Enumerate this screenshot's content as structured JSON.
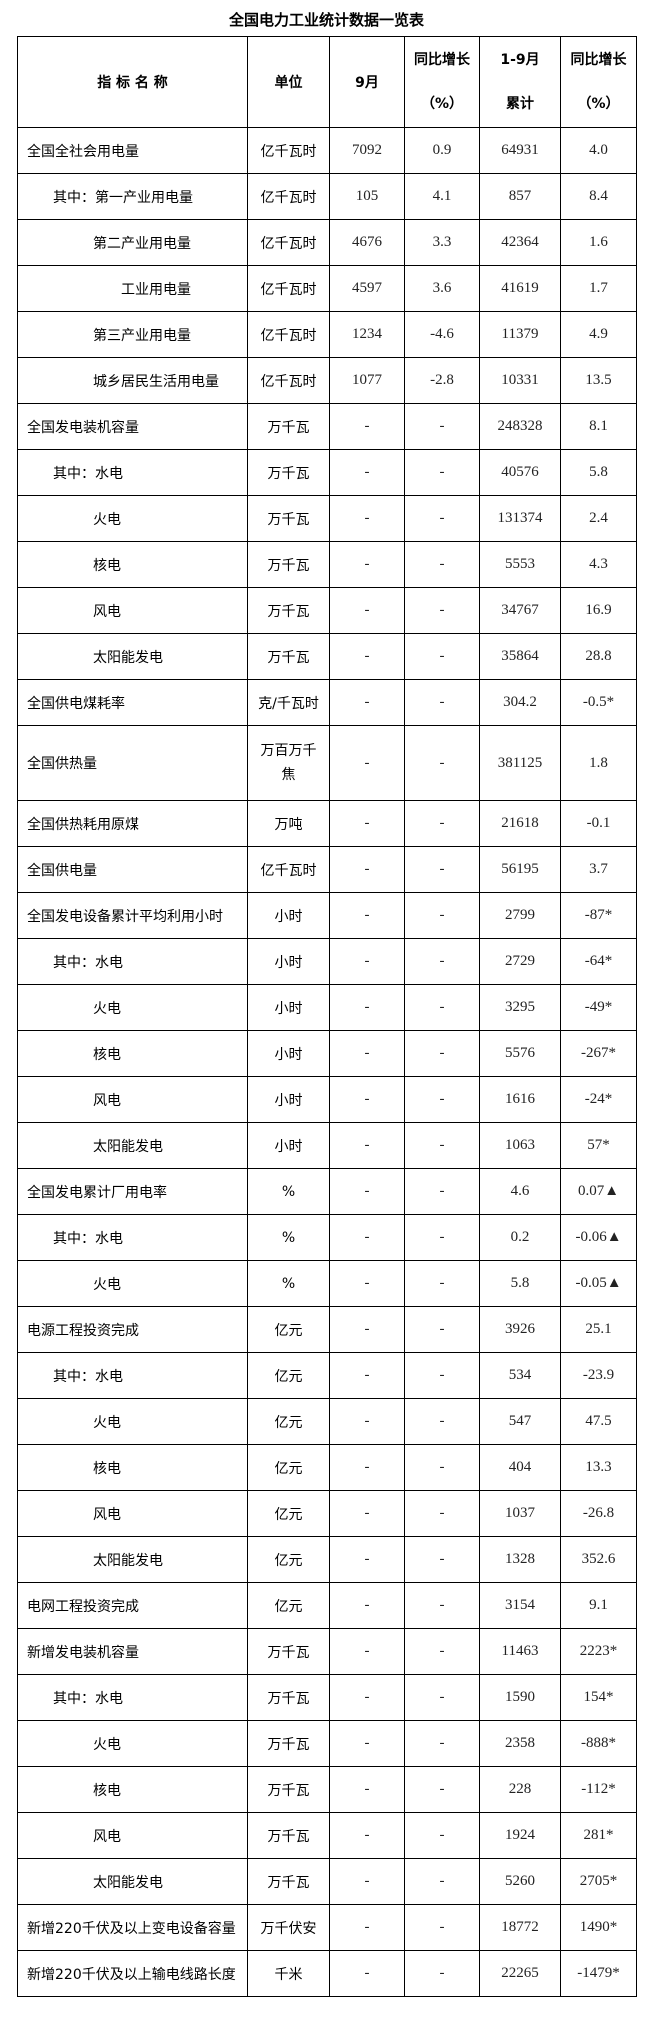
{
  "title": "全国电力工业统计数据一览表",
  "headers": {
    "name": "指 标 名 称",
    "unit": "单位",
    "month": "9月",
    "month_yoy_1": "同比增长",
    "month_yoy_2": "（%）",
    "cum_1": "1-9月",
    "cum_2": "累计",
    "cum_yoy_1": "同比增长",
    "cum_yoy_2": "（%）"
  },
  "rows": [
    {
      "name": "全国全社会用电量",
      "level": 0,
      "unit": "亿千瓦时",
      "month": "7092",
      "month_yoy": "0.9",
      "cum": "64931",
      "cum_yoy": "4.0"
    },
    {
      "name": "其中：第一产业用电量",
      "level": 1,
      "unit": "亿千瓦时",
      "month": "105",
      "month_yoy": "4.1",
      "cum": "857",
      "cum_yoy": "8.4"
    },
    {
      "name": "第二产业用电量",
      "level": 2,
      "unit": "亿千瓦时",
      "month": "4676",
      "month_yoy": "3.3",
      "cum": "42364",
      "cum_yoy": "1.6"
    },
    {
      "name": "工业用电量",
      "level": 3,
      "unit": "亿千瓦时",
      "month": "4597",
      "month_yoy": "3.6",
      "cum": "41619",
      "cum_yoy": "1.7"
    },
    {
      "name": "第三产业用电量",
      "level": 2,
      "unit": "亿千瓦时",
      "month": "1234",
      "month_yoy": "-4.6",
      "cum": "11379",
      "cum_yoy": "4.9"
    },
    {
      "name": "城乡居民生活用电量",
      "level": 2,
      "unit": "亿千瓦时",
      "month": "1077",
      "month_yoy": "-2.8",
      "cum": "10331",
      "cum_yoy": "13.5"
    },
    {
      "name": "全国发电装机容量",
      "level": 0,
      "unit": "万千瓦",
      "month": "-",
      "month_yoy": "-",
      "cum": "248328",
      "cum_yoy": "8.1"
    },
    {
      "name": "其中：水电",
      "level": 1,
      "unit": "万千瓦",
      "month": "-",
      "month_yoy": "-",
      "cum": "40576",
      "cum_yoy": "5.8"
    },
    {
      "name": "火电",
      "level": 2,
      "unit": "万千瓦",
      "month": "-",
      "month_yoy": "-",
      "cum": "131374",
      "cum_yoy": "2.4"
    },
    {
      "name": "核电",
      "level": 2,
      "unit": "万千瓦",
      "month": "-",
      "month_yoy": "-",
      "cum": "5553",
      "cum_yoy": "4.3"
    },
    {
      "name": "风电",
      "level": 2,
      "unit": "万千瓦",
      "month": "-",
      "month_yoy": "-",
      "cum": "34767",
      "cum_yoy": "16.9"
    },
    {
      "name": "太阳能发电",
      "level": 2,
      "unit": "万千瓦",
      "month": "-",
      "month_yoy": "-",
      "cum": "35864",
      "cum_yoy": "28.8"
    },
    {
      "name": "全国供电煤耗率",
      "level": 0,
      "unit": "克/千瓦时",
      "month": "-",
      "month_yoy": "-",
      "cum": "304.2",
      "cum_yoy": "-0.5*"
    },
    {
      "name": "全国供热量",
      "level": 0,
      "unit": "万百万千",
      "unit2": "焦",
      "tall": true,
      "month": "-",
      "month_yoy": "-",
      "cum": "381125",
      "cum_yoy": "1.8"
    },
    {
      "name": "全国供热耗用原煤",
      "level": 0,
      "unit": "万吨",
      "month": "-",
      "month_yoy": "-",
      "cum": "21618",
      "cum_yoy": "-0.1"
    },
    {
      "name": "全国供电量",
      "level": 0,
      "unit": "亿千瓦时",
      "month": "-",
      "month_yoy": "-",
      "cum": "56195",
      "cum_yoy": "3.7"
    },
    {
      "name": "全国发电设备累计平均利用小时",
      "level": 0,
      "unit": "小时",
      "month": "-",
      "month_yoy": "-",
      "cum": "2799",
      "cum_yoy": "-87*"
    },
    {
      "name": "其中：水电",
      "level": 1,
      "unit": "小时",
      "month": "-",
      "month_yoy": "-",
      "cum": "2729",
      "cum_yoy": "-64*"
    },
    {
      "name": "火电",
      "level": 2,
      "unit": "小时",
      "month": "-",
      "month_yoy": "-",
      "cum": "3295",
      "cum_yoy": "-49*"
    },
    {
      "name": "核电",
      "level": 2,
      "unit": "小时",
      "month": "-",
      "month_yoy": "-",
      "cum": "5576",
      "cum_yoy": "-267*"
    },
    {
      "name": "风电",
      "level": 2,
      "unit": "小时",
      "month": "-",
      "month_yoy": "-",
      "cum": "1616",
      "cum_yoy": "-24*"
    },
    {
      "name": "太阳能发电",
      "level": 2,
      "unit": "小时",
      "month": "-",
      "month_yoy": "-",
      "cum": "1063",
      "cum_yoy": "57*"
    },
    {
      "name": "全国发电累计厂用电率",
      "level": 0,
      "unit": "%",
      "month": "-",
      "month_yoy": "-",
      "cum": "4.6",
      "cum_yoy": "0.07▲"
    },
    {
      "name": "其中：水电",
      "level": 1,
      "unit": "%",
      "month": "-",
      "month_yoy": "-",
      "cum": "0.2",
      "cum_yoy": "-0.06▲"
    },
    {
      "name": "火电",
      "level": 2,
      "unit": "%",
      "month": "-",
      "month_yoy": "-",
      "cum": "5.8",
      "cum_yoy": "-0.05▲"
    },
    {
      "name": "电源工程投资完成",
      "level": 0,
      "unit": "亿元",
      "month": "-",
      "month_yoy": "-",
      "cum": "3926",
      "cum_yoy": "25.1"
    },
    {
      "name": "其中：水电",
      "level": 1,
      "unit": "亿元",
      "month": "-",
      "month_yoy": "-",
      "cum": "534",
      "cum_yoy": "-23.9"
    },
    {
      "name": "火电",
      "level": 2,
      "unit": "亿元",
      "month": "-",
      "month_yoy": "-",
      "cum": "547",
      "cum_yoy": "47.5"
    },
    {
      "name": "核电",
      "level": 2,
      "unit": "亿元",
      "month": "-",
      "month_yoy": "-",
      "cum": "404",
      "cum_yoy": "13.3"
    },
    {
      "name": "风电",
      "level": 2,
      "unit": "亿元",
      "month": "-",
      "month_yoy": "-",
      "cum": "1037",
      "cum_yoy": "-26.8"
    },
    {
      "name": "太阳能发电",
      "level": 2,
      "unit": "亿元",
      "month": "-",
      "month_yoy": "-",
      "cum": "1328",
      "cum_yoy": "352.6"
    },
    {
      "name": "电网工程投资完成",
      "level": 0,
      "unit": "亿元",
      "month": "-",
      "month_yoy": "-",
      "cum": "3154",
      "cum_yoy": "9.1"
    },
    {
      "name": "新增发电装机容量",
      "level": 0,
      "unit": "万千瓦",
      "month": "-",
      "month_yoy": "-",
      "cum": "11463",
      "cum_yoy": "2223*"
    },
    {
      "name": "其中：水电",
      "level": 1,
      "unit": "万千瓦",
      "month": "-",
      "month_yoy": "-",
      "cum": "1590",
      "cum_yoy": "154*"
    },
    {
      "name": "火电",
      "level": 2,
      "unit": "万千瓦",
      "month": "-",
      "month_yoy": "-",
      "cum": "2358",
      "cum_yoy": "-888*"
    },
    {
      "name": "核电",
      "level": 2,
      "unit": "万千瓦",
      "month": "-",
      "month_yoy": "-",
      "cum": "228",
      "cum_yoy": "-112*"
    },
    {
      "name": "风电",
      "level": 2,
      "unit": "万千瓦",
      "month": "-",
      "month_yoy": "-",
      "cum": "1924",
      "cum_yoy": "281*"
    },
    {
      "name": "太阳能发电",
      "level": 2,
      "unit": "万千瓦",
      "month": "-",
      "month_yoy": "-",
      "cum": "5260",
      "cum_yoy": "2705*"
    },
    {
      "name": "新增220千伏及以上变电设备容量",
      "level": 0,
      "unit": "万千伏安",
      "month": "-",
      "month_yoy": "-",
      "cum": "18772",
      "cum_yoy": "1490*"
    },
    {
      "name": "新增220千伏及以上输电线路长度",
      "level": 0,
      "unit": "千米",
      "month": "-",
      "month_yoy": "-",
      "cum": "22265",
      "cum_yoy": "-1479*"
    }
  ]
}
